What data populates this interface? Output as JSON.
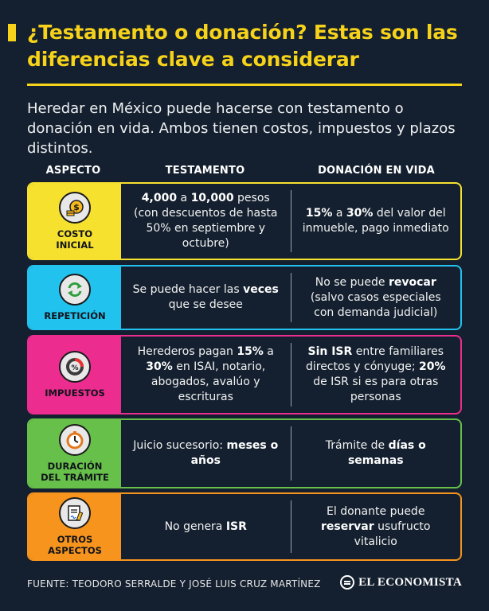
{
  "title": "¿Testamento o donación? Estas son las diferencias clave a considerar",
  "intro": "Heredar en México puede hacerse con testamento o donación en vida. Ambos tienen costos, impuestos y plazos distintos.",
  "headers": {
    "aspect": "ASPECTO",
    "will": "TESTAMENTO",
    "donation": "DONACIÓN EN VIDA"
  },
  "rows": [
    {
      "label": "COSTO\nINICIAL",
      "color": "#f7e12f",
      "icon": "coins-dollar-icon",
      "will": [
        {
          "t": "4,000",
          "b": true
        },
        {
          "t": " a ",
          "b": false
        },
        {
          "t": "10,000",
          "b": true
        },
        {
          "t": " pesos (con descuentos de hasta 50% en septiembre y octubre)",
          "b": false
        }
      ],
      "donation": [
        {
          "t": "15%",
          "b": true
        },
        {
          "t": " a ",
          "b": false
        },
        {
          "t": "30%",
          "b": true
        },
        {
          "t": " del valor del inmueble, pago inmediato",
          "b": false
        }
      ]
    },
    {
      "label": "REPETICIÓN",
      "color": "#22c2ee",
      "icon": "repeat-arrows-icon",
      "will": [
        {
          "t": "Se puede hacer las ",
          "b": false
        },
        {
          "t": "veces",
          "b": true
        },
        {
          "t": " que se desee",
          "b": false
        }
      ],
      "donation": [
        {
          "t": "No se puede ",
          "b": false
        },
        {
          "t": "revocar",
          "b": true
        },
        {
          "t": " (salvo casos especiales con demanda judicial)",
          "b": false
        }
      ]
    },
    {
      "label": "IMPUESTOS",
      "color": "#ec2d8f",
      "icon": "percent-chart-icon",
      "will": [
        {
          "t": "Herederos pagan ",
          "b": false
        },
        {
          "t": "15%",
          "b": true
        },
        {
          "t": " a ",
          "b": false
        },
        {
          "t": "30%",
          "b": true
        },
        {
          "t": " en ISAI, notario, abogados, avalúo y escrituras",
          "b": false
        }
      ],
      "donation": [
        {
          "t": "Sin ISR",
          "b": true
        },
        {
          "t": " entre familiares directos y cónyuge; ",
          "b": false
        },
        {
          "t": "20%",
          "b": true
        },
        {
          "t": " de ISR si es para otras personas",
          "b": false
        }
      ]
    },
    {
      "label": "DURACIÓN\nDEL TRÁMITE",
      "color": "#67c04a",
      "icon": "clock-icon",
      "will": [
        {
          "t": "Juicio sucesorio: ",
          "b": false
        },
        {
          "t": "meses o años",
          "b": true
        }
      ],
      "donation": [
        {
          "t": "Trámite de ",
          "b": false
        },
        {
          "t": "días o semanas",
          "b": true
        }
      ]
    },
    {
      "label": "OTROS\nASPECTOS",
      "color": "#f7941d",
      "icon": "document-signature-icon",
      "will": [
        {
          "t": "No genera ",
          "b": false
        },
        {
          "t": "ISR",
          "b": true
        }
      ],
      "donation": [
        {
          "t": "El donante puede ",
          "b": false
        },
        {
          "t": "reservar",
          "b": true
        },
        {
          "t": " usufructo vitalicio",
          "b": false
        }
      ]
    }
  ],
  "footer": {
    "source": "FUENTE: TEODORO SERRALDE Y JOSÉ LUIS CRUZ MARTÍNEZ",
    "brand": "EL ECONOMISTA"
  }
}
